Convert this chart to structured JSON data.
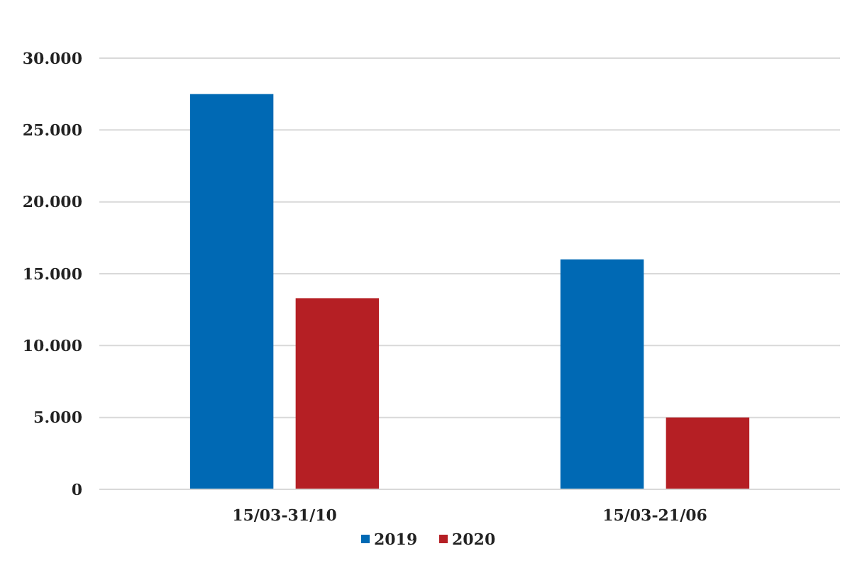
{
  "chart_data": {
    "type": "bar",
    "categories": [
      "15/03-31/10",
      "15/03-21/06"
    ],
    "series": [
      {
        "name": "2019",
        "color": "#0069b4",
        "values": [
          27500,
          16000
        ]
      },
      {
        "name": "2020",
        "color": "#b51f24",
        "values": [
          13300,
          5000
        ]
      }
    ],
    "ylim": [
      0,
      30000
    ],
    "yticks": [
      {
        "value": 0,
        "label": "0"
      },
      {
        "value": 5000,
        "label": "5.000"
      },
      {
        "value": 10000,
        "label": "10.000"
      },
      {
        "value": 15000,
        "label": "15.000"
      },
      {
        "value": 20000,
        "label": "20.000"
      },
      {
        "value": 25000,
        "label": "25.000"
      },
      {
        "value": 30000,
        "label": "30.000"
      }
    ],
    "grid": "y",
    "legend": "bottom"
  }
}
